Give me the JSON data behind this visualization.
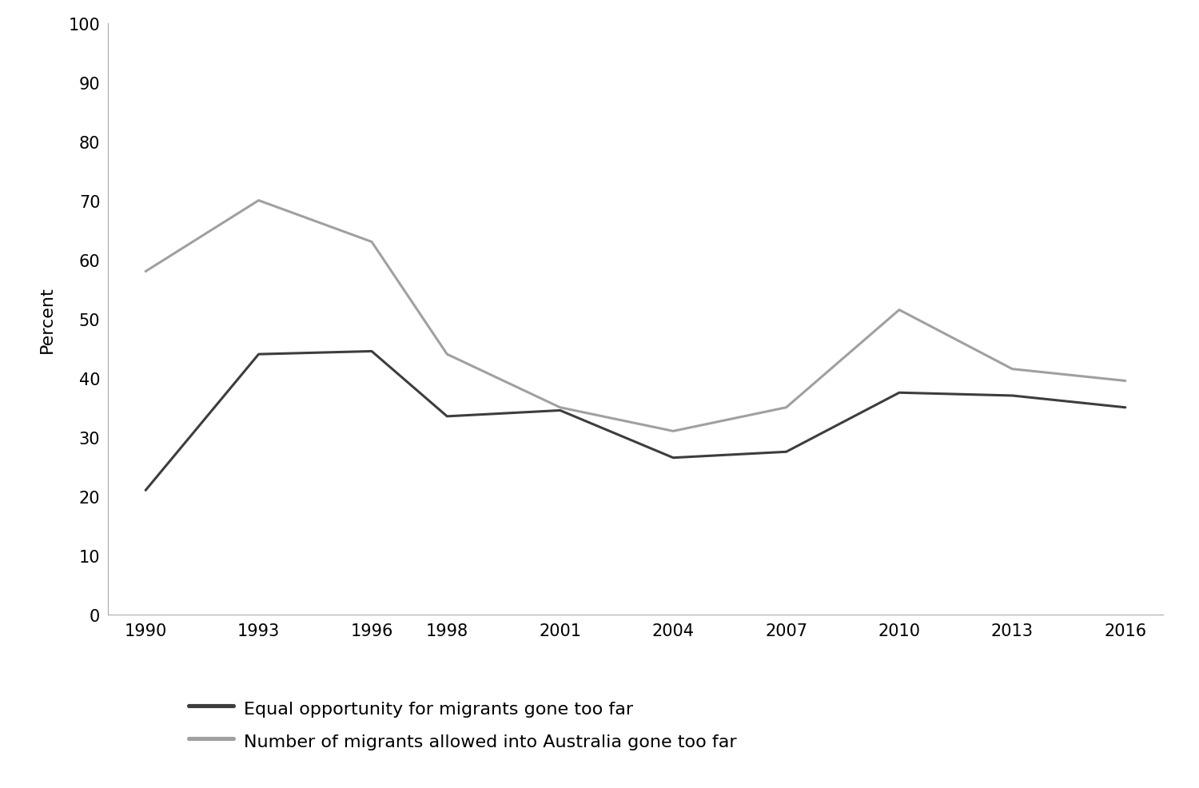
{
  "years": [
    1990,
    1993,
    1996,
    1998,
    2001,
    2004,
    2007,
    2010,
    2013,
    2016
  ],
  "equal_opportunity": [
    21,
    44,
    44.5,
    33.5,
    34.5,
    26.5,
    27.5,
    37.5,
    37,
    35
  ],
  "number_migrants": [
    58,
    70,
    63,
    44,
    35,
    31,
    35,
    51.5,
    41.5,
    39.5
  ],
  "line_color_dark": "#3d3d3d",
  "line_color_light": "#a0a0a0",
  "ylabel": "Percent",
  "ylim": [
    0,
    100
  ],
  "yticks": [
    0,
    10,
    20,
    30,
    40,
    50,
    60,
    70,
    80,
    90,
    100
  ],
  "xtick_labels": [
    "1990",
    "1993",
    "1996",
    "1998",
    "2001",
    "2004",
    "2007",
    "2010",
    "2013",
    "2016"
  ],
  "legend_label_dark": "Equal opportunity for migrants gone too far",
  "legend_label_light": "Number of migrants allowed into Australia gone too far",
  "background_color": "#ffffff",
  "linewidth": 2.2,
  "legend_fontsize": 16,
  "axis_fontsize": 16,
  "tick_fontsize": 15,
  "spine_color": "#aaaaaa"
}
